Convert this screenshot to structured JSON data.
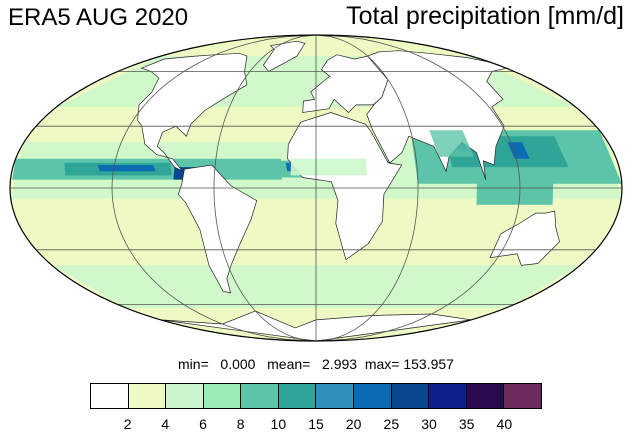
{
  "header": {
    "left_title": "ERA5 AUG 2020",
    "right_title": "Total precipitation [mm/d]"
  },
  "stats": {
    "min_label": "min=",
    "min_value": "0.000",
    "mean_label": "mean=",
    "mean_value": "2.993",
    "max_label": "max=",
    "max_value": "153.957"
  },
  "colorbar": {
    "colors": [
      "#ffffff",
      "#eefac4",
      "#ccf7cc",
      "#99ebb8",
      "#5cc4a8",
      "#2ea596",
      "#2f92bd",
      "#0b6cb3",
      "#08478f",
      "#0d1f8a",
      "#2a0a4e",
      "#6a2b5c"
    ],
    "labels": [
      "2",
      "4",
      "6",
      "8",
      "10",
      "15",
      "20",
      "25",
      "30",
      "35",
      "40"
    ]
  },
  "map": {
    "projection": "Mollweide",
    "colors": {
      "ocean_low": "#eefac4",
      "ocean_mid": "#ccf7cc",
      "band": "#5cc4a8",
      "band_strong": "#2ea596",
      "core": "#0b6cb3",
      "deep": "#08478f",
      "land_dry": "#ffffff",
      "grid": "#555555"
    }
  }
}
